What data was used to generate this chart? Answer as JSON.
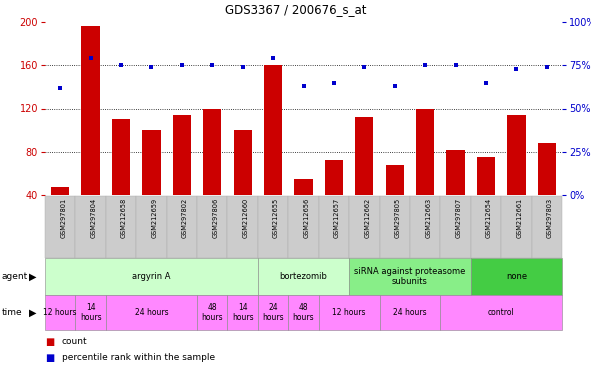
{
  "title": "GDS3367 / 200676_s_at",
  "samples": [
    "GSM297801",
    "GSM297804",
    "GSM212658",
    "GSM212659",
    "GSM297802",
    "GSM297806",
    "GSM212660",
    "GSM212655",
    "GSM212656",
    "GSM212657",
    "GSM212662",
    "GSM297805",
    "GSM212663",
    "GSM297807",
    "GSM212654",
    "GSM212661",
    "GSM297803"
  ],
  "counts": [
    47,
    196,
    110,
    100,
    114,
    120,
    100,
    160,
    55,
    72,
    112,
    68,
    120,
    82,
    75,
    114,
    88
  ],
  "percentiles": [
    62,
    79,
    75,
    74,
    75,
    75,
    74,
    79,
    63,
    65,
    74,
    63,
    75,
    75,
    65,
    73,
    74
  ],
  "count_color": "#cc0000",
  "percentile_color": "#0000cc",
  "ylim_left": [
    40,
    200
  ],
  "ylim_right": [
    0,
    100
  ],
  "yticks_left": [
    40,
    80,
    120,
    160,
    200
  ],
  "yticks_right": [
    0,
    25,
    50,
    75,
    100
  ],
  "agent_defs": [
    {
      "label": "argyrin A",
      "start": 0,
      "end": 7,
      "color": "#ccffcc"
    },
    {
      "label": "bortezomib",
      "start": 7,
      "end": 10,
      "color": "#ccffcc"
    },
    {
      "label": "siRNA against proteasome\nsubunits",
      "start": 10,
      "end": 14,
      "color": "#88ee88"
    },
    {
      "label": "none",
      "start": 14,
      "end": 17,
      "color": "#44cc44"
    }
  ],
  "time_defs": [
    {
      "label": "12 hours",
      "start": 0,
      "end": 1
    },
    {
      "label": "14\nhours",
      "start": 1,
      "end": 2
    },
    {
      "label": "24 hours",
      "start": 2,
      "end": 5
    },
    {
      "label": "48\nhours",
      "start": 5,
      "end": 6
    },
    {
      "label": "14\nhours",
      "start": 6,
      "end": 7
    },
    {
      "label": "24\nhours",
      "start": 7,
      "end": 8
    },
    {
      "label": "48\nhours",
      "start": 8,
      "end": 9
    },
    {
      "label": "12 hours",
      "start": 9,
      "end": 11
    },
    {
      "label": "24 hours",
      "start": 11,
      "end": 13
    },
    {
      "label": "control",
      "start": 13,
      "end": 17
    }
  ],
  "time_color": "#ff88ff",
  "legend_count_label": "count",
  "legend_percentile_label": "percentile rank within the sample",
  "bar_width": 0.6,
  "grid_color": "#000000",
  "background_color": "#ffffff",
  "col_bg_color": "#cccccc",
  "col_edge_color": "#aaaaaa"
}
